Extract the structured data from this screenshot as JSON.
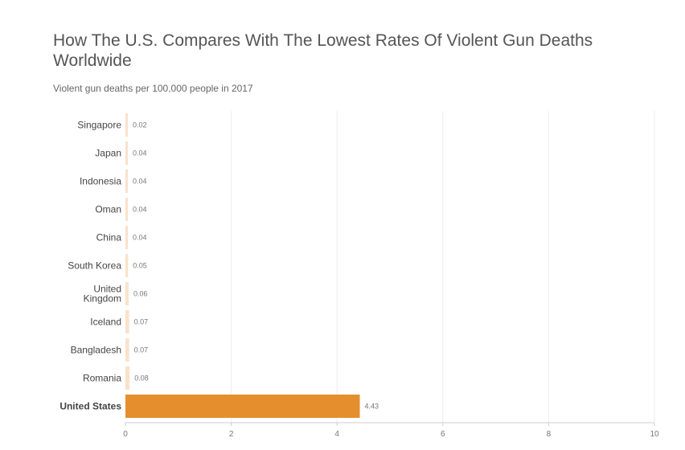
{
  "chart_data": {
    "type": "bar",
    "orientation": "horizontal",
    "title": "How The U.S. Compares With The Lowest Rates Of Violent Gun Deaths Worldwide",
    "subtitle": "Violent gun deaths per 100,000 people in 2017",
    "categories": [
      "Singapore",
      "Japan",
      "Indonesia",
      "Oman",
      "China",
      "South Korea",
      "United Kingdom",
      "Iceland",
      "Bangladesh",
      "Romania",
      "United States"
    ],
    "category_lines": [
      [
        "Singapore"
      ],
      [
        "Japan"
      ],
      [
        "Indonesia"
      ],
      [
        "Oman"
      ],
      [
        "China"
      ],
      [
        "South Korea"
      ],
      [
        "United",
        "Kingdom"
      ],
      [
        "Iceland"
      ],
      [
        "Bangladesh"
      ],
      [
        "Romania"
      ],
      [
        "United States"
      ]
    ],
    "values": [
      0.02,
      0.04,
      0.04,
      0.04,
      0.04,
      0.05,
      0.06,
      0.07,
      0.07,
      0.08,
      4.43
    ],
    "value_labels": [
      "0.02",
      "0.04",
      "0.04",
      "0.04",
      "0.04",
      "0.05",
      "0.06",
      "0.07",
      "0.07",
      "0.08",
      "4.43"
    ],
    "highlight": "United States",
    "xlim": [
      0,
      10
    ],
    "xticks": [
      0,
      2,
      4,
      6,
      8,
      10
    ],
    "xlabel": "",
    "ylabel": "",
    "grid": true
  },
  "colors": {
    "bar": "#f9e2cc",
    "highlight_bar": "#e58e2e",
    "grid": "#eeeeee",
    "axis": "#cccccc"
  }
}
